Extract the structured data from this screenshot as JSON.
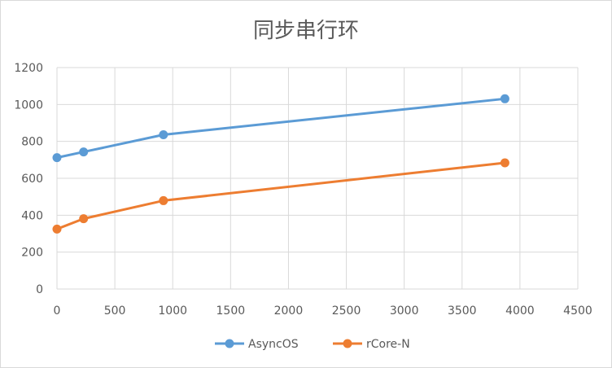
{
  "chart_data": {
    "type": "line",
    "title": "同步串行环",
    "xlabel": "",
    "ylabel": "",
    "xlim": [
      0,
      4500
    ],
    "ylim": [
      0,
      1200
    ],
    "x_ticks": [
      "0",
      "500",
      "1000",
      "1500",
      "2000",
      "2500",
      "3000",
      "3500",
      "4000",
      "4500"
    ],
    "y_ticks": [
      "0",
      "200",
      "400",
      "600",
      "800",
      "1000",
      "1200"
    ],
    "grid": true,
    "legend_position": "bottom",
    "series": [
      {
        "name": "AsyncOS",
        "color": "#5b9bd5",
        "points": [
          {
            "x": 0,
            "y": 712
          },
          {
            "x": 230,
            "y": 743
          },
          {
            "x": 920,
            "y": 836
          },
          {
            "x": 3870,
            "y": 1031
          }
        ]
      },
      {
        "name": "rCore-N",
        "color": "#ed7d31",
        "points": [
          {
            "x": 0,
            "y": 325
          },
          {
            "x": 230,
            "y": 381
          },
          {
            "x": 920,
            "y": 479
          },
          {
            "x": 3870,
            "y": 684
          }
        ]
      }
    ]
  }
}
